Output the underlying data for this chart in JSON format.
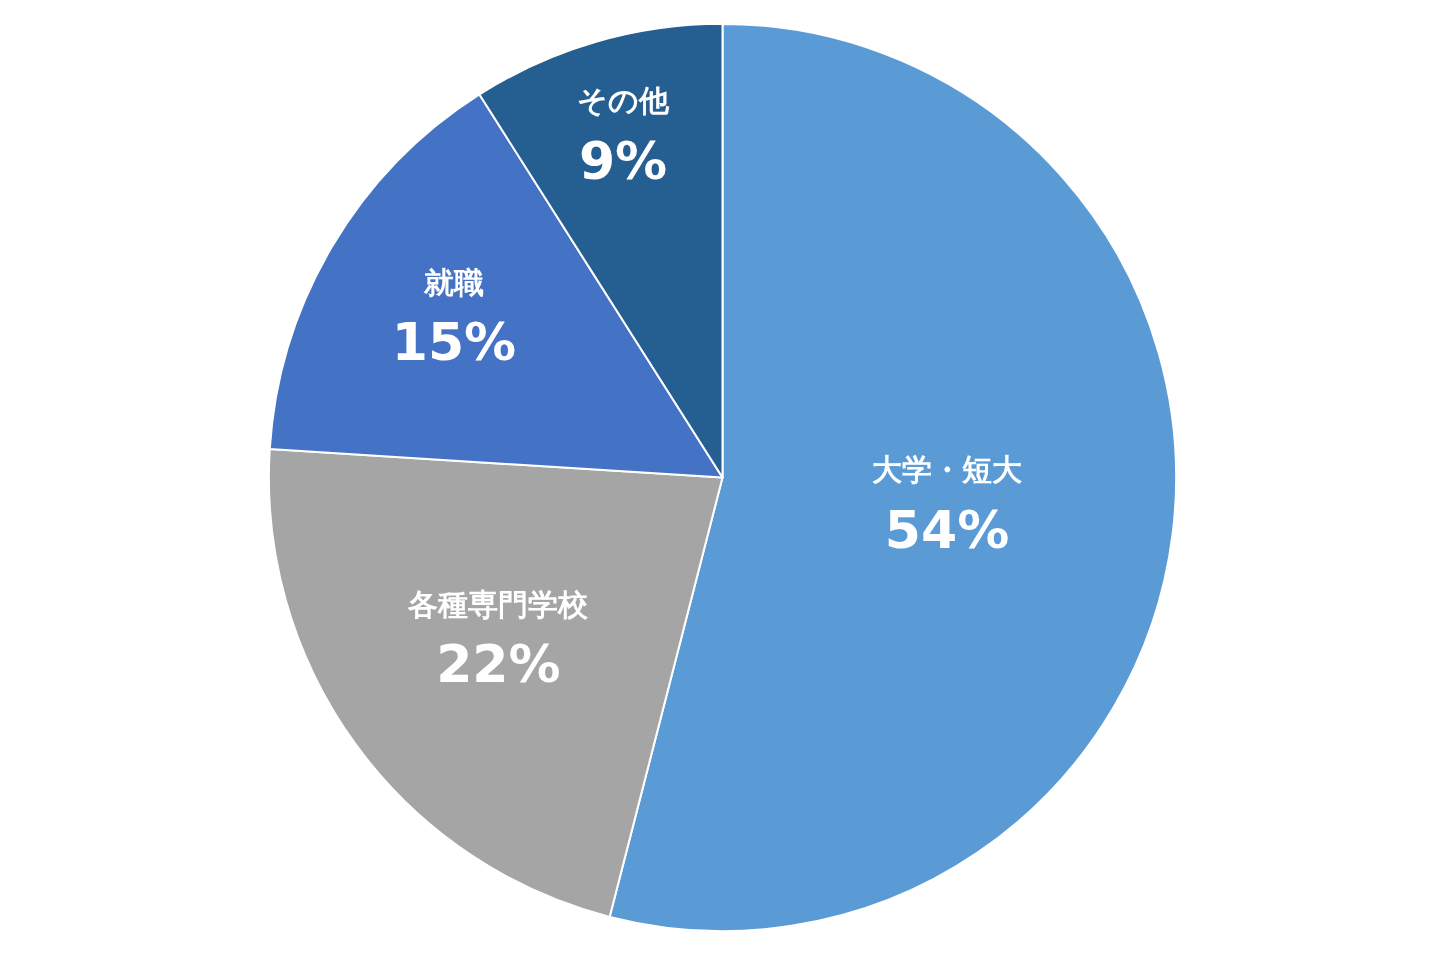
{
  "chart_data": {
    "type": "pie",
    "categories": [
      "大学・短大",
      "各種専門学校",
      "就職",
      "その他"
    ],
    "values": [
      54,
      22,
      15,
      9
    ],
    "value_labels": [
      "54%",
      "22%",
      "15%",
      "9%"
    ],
    "colors": [
      "#5b9bd5",
      "#a5a5a5",
      "#4472c4",
      "#255e91"
    ],
    "legend": false
  }
}
